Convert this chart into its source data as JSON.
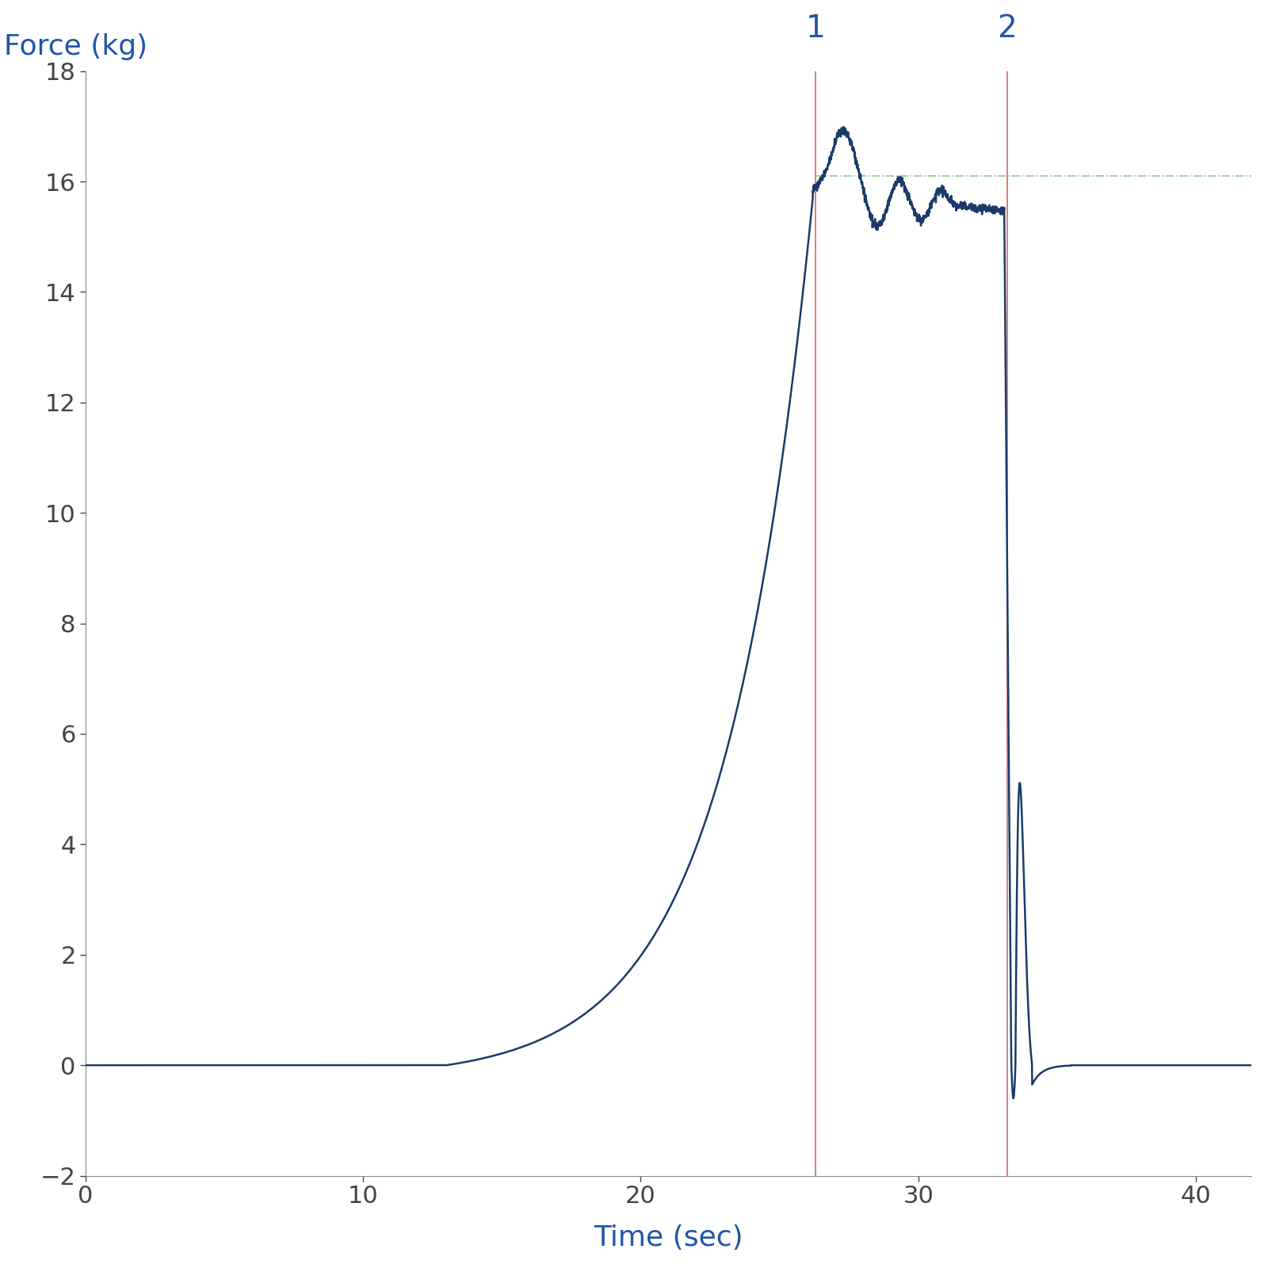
{
  "title": "",
  "xlabel": "Time (sec)",
  "ylabel": "Force (kg)",
  "xlim": [
    0,
    42
  ],
  "ylim": [
    -2,
    18
  ],
  "xticks": [
    0,
    10,
    20,
    30,
    40
  ],
  "yticks": [
    -2,
    0,
    2,
    4,
    6,
    8,
    10,
    12,
    14,
    16,
    18
  ],
  "line_color": "#1a3a6b",
  "vline1_x": 26.3,
  "vline2_x": 33.2,
  "vline_color": "#cc4444",
  "hline_y": 16.1,
  "hline_color": "#88bb88",
  "label1": "1",
  "label2": "2",
  "label_color": "#2255aa",
  "axis_label_color": "#2255aa",
  "tick_color": "#444444",
  "background_color": "#ffffff"
}
